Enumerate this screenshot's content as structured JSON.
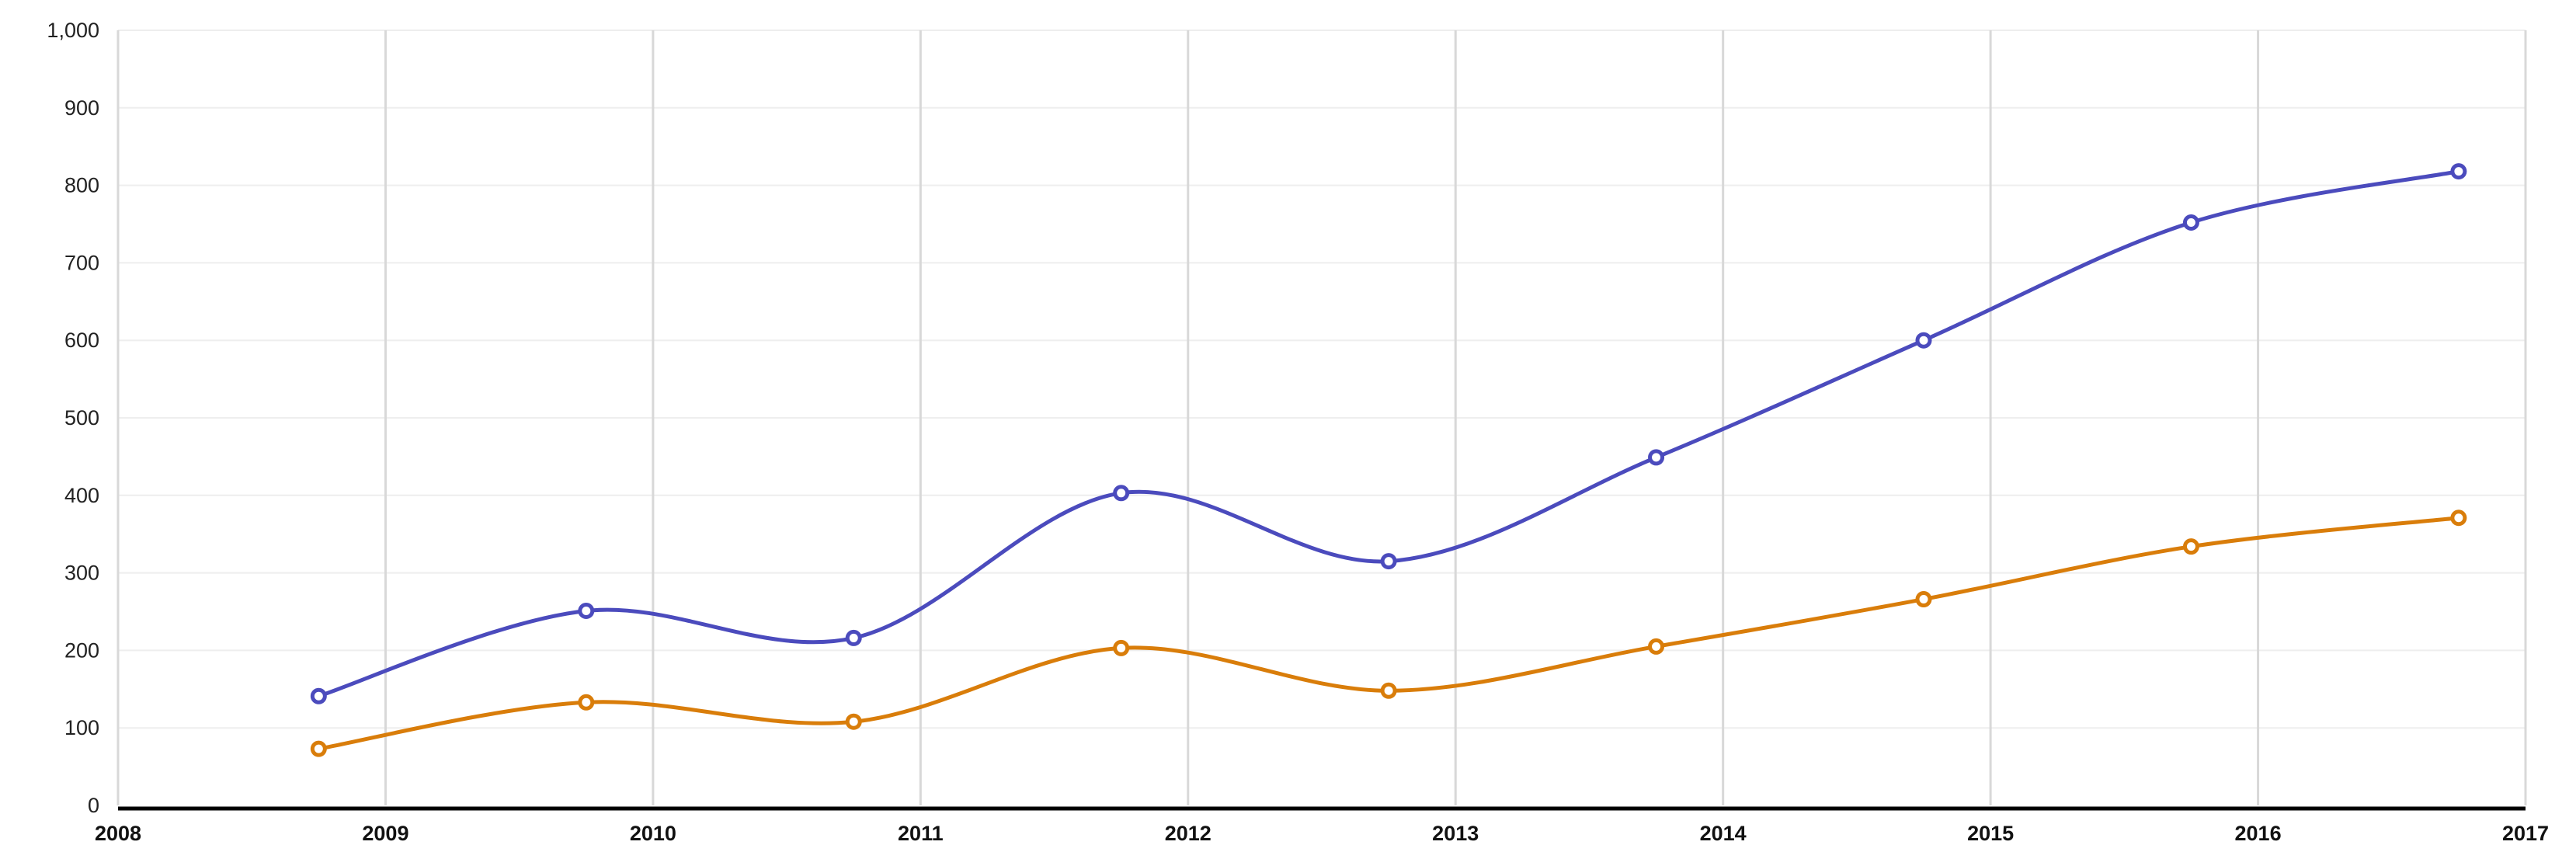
{
  "chart_data": {
    "type": "line",
    "title": "",
    "xlabel": "",
    "ylabel": "",
    "smooth": true,
    "grid": {
      "horizontal": true,
      "vertical": true
    },
    "legend": "none",
    "xlim": [
      2008,
      2017
    ],
    "ylim": [
      0,
      1000
    ],
    "x_ticks": [
      "2008",
      "2009",
      "2010",
      "2011",
      "2012",
      "2013",
      "2014",
      "2015",
      "2016",
      "2017"
    ],
    "y_ticks": [
      "0",
      "100",
      "200",
      "300",
      "400",
      "500",
      "600",
      "700",
      "800",
      "900",
      "1,000"
    ],
    "x": [
      "2008-10",
      "2009-10",
      "2010-10",
      "2011-10",
      "2012-10",
      "2013-10",
      "2014-10",
      "2015-10",
      "2016-10"
    ],
    "series": [
      {
        "color": "#4b4bbd",
        "values": [
          141,
          251,
          216,
          403,
          315,
          449,
          600,
          752,
          818
        ]
      },
      {
        "color": "#d97d0a",
        "values": [
          73,
          133,
          108,
          203,
          148,
          205,
          266,
          334,
          371
        ]
      }
    ]
  }
}
